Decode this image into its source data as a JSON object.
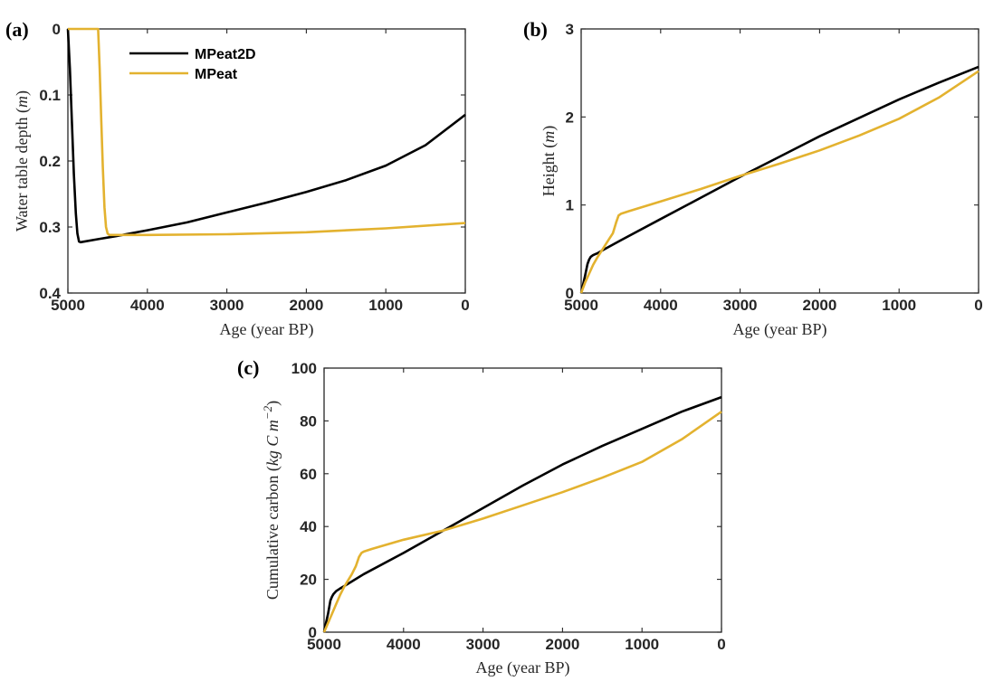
{
  "colors": {
    "MPeat2D": "#000000",
    "MPeat": "#E3B22F",
    "axis": "#262626"
  },
  "chart_data": [
    {
      "type": "line",
      "panel_label": "(a)",
      "title": "",
      "xlabel": "Age (year BP)",
      "ylabel_parts": [
        "Water table depth (",
        "m",
        ")"
      ],
      "xlim": [
        5000,
        0
      ],
      "ylim": [
        0.4,
        0
      ],
      "y_reversed": true,
      "xticks": [
        5000,
        4000,
        3000,
        2000,
        1000,
        0
      ],
      "yticks": [
        0,
        0.1,
        0.2,
        0.3,
        0.4
      ],
      "ytick_labels": [
        "0",
        "0.1",
        "0.2",
        "0.3",
        "0.4"
      ],
      "legend": {
        "placement": "top-left",
        "entries": [
          "MPeat2D",
          "MPeat"
        ]
      },
      "series": [
        {
          "name": "MPeat2D",
          "color": "#000000",
          "x": [
            5000,
            4975,
            4950,
            4925,
            4900,
            4880,
            4860,
            4840,
            4600,
            4400,
            4000,
            3500,
            3000,
            2500,
            2000,
            1500,
            1000,
            500,
            0
          ],
          "y": [
            0.0,
            0.06,
            0.14,
            0.22,
            0.28,
            0.31,
            0.322,
            0.323,
            0.318,
            0.314,
            0.305,
            0.293,
            0.278,
            0.263,
            0.247,
            0.229,
            0.207,
            0.176,
            0.13
          ]
        },
        {
          "name": "MPeat",
          "color": "#E3B22F",
          "x": [
            5000,
            4620,
            4600,
            4580,
            4560,
            4540,
            4520,
            4500,
            4480,
            4400,
            4000,
            3000,
            2000,
            1000,
            0
          ],
          "y": [
            0.0,
            0.0,
            0.06,
            0.14,
            0.21,
            0.27,
            0.3,
            0.31,
            0.312,
            0.312,
            0.312,
            0.311,
            0.308,
            0.302,
            0.294
          ]
        }
      ]
    },
    {
      "type": "line",
      "panel_label": "(b)",
      "title": "",
      "xlabel": "Age (year BP)",
      "ylabel_parts": [
        "Height (",
        "m",
        ")"
      ],
      "xlim": [
        5000,
        0
      ],
      "ylim": [
        0,
        3
      ],
      "y_reversed": false,
      "xticks": [
        5000,
        4000,
        3000,
        2000,
        1000,
        0
      ],
      "yticks": [
        0,
        1,
        2,
        3
      ],
      "ytick_labels": [
        "0",
        "1",
        "2",
        "3"
      ],
      "series": [
        {
          "name": "MPeat2D",
          "color": "#000000",
          "x": [
            5000,
            4980,
            4950,
            4920,
            4900,
            4880,
            4850,
            4800,
            4700,
            4500,
            4000,
            3500,
            3000,
            2500,
            2000,
            1500,
            1000,
            500,
            0
          ],
          "y": [
            0.0,
            0.08,
            0.2,
            0.33,
            0.38,
            0.41,
            0.43,
            0.45,
            0.5,
            0.6,
            0.84,
            1.08,
            1.32,
            1.55,
            1.78,
            1.99,
            2.2,
            2.39,
            2.57
          ]
        },
        {
          "name": "MPeat",
          "color": "#E3B22F",
          "x": [
            5000,
            4950,
            4900,
            4850,
            4800,
            4750,
            4700,
            4650,
            4600,
            4560,
            4530,
            4500,
            4400,
            4000,
            3500,
            3000,
            2500,
            2000,
            1500,
            1000,
            500,
            0
          ],
          "y": [
            0.0,
            0.12,
            0.22,
            0.32,
            0.4,
            0.47,
            0.54,
            0.61,
            0.68,
            0.8,
            0.88,
            0.9,
            0.93,
            1.04,
            1.18,
            1.33,
            1.47,
            1.62,
            1.79,
            1.98,
            2.22,
            2.52
          ]
        }
      ]
    },
    {
      "type": "line",
      "panel_label": "(c)",
      "title": "",
      "xlabel": "Age (year BP)",
      "ylabel_parts": [
        "Cumulative carbon (",
        "kg C m",
        "−2",
        ")"
      ],
      "xlim": [
        5000,
        0
      ],
      "ylim": [
        0,
        100
      ],
      "y_reversed": false,
      "xticks": [
        5000,
        4000,
        3000,
        2000,
        1000,
        0
      ],
      "yticks": [
        0,
        20,
        40,
        60,
        80,
        100
      ],
      "ytick_labels": [
        "0",
        "20",
        "40",
        "60",
        "80",
        "100"
      ],
      "series": [
        {
          "name": "MPeat2D",
          "color": "#000000",
          "x": [
            5000,
            4980,
            4950,
            4920,
            4900,
            4880,
            4850,
            4800,
            4700,
            4500,
            4000,
            3500,
            3000,
            2500,
            2000,
            1500,
            1000,
            500,
            0
          ],
          "y": [
            0.0,
            3,
            7,
            12,
            13.5,
            14.5,
            15.5,
            16.5,
            18.3,
            22,
            30,
            38.5,
            47,
            55.5,
            63.5,
            70.5,
            77,
            83.5,
            89
          ]
        },
        {
          "name": "MPeat",
          "color": "#E3B22F",
          "x": [
            5000,
            4950,
            4900,
            4850,
            4800,
            4750,
            4700,
            4650,
            4600,
            4560,
            4530,
            4500,
            4400,
            4000,
            3500,
            3000,
            2500,
            2000,
            1500,
            1000,
            500,
            0
          ],
          "y": [
            0.0,
            3.5,
            7,
            10.5,
            14,
            17,
            19.5,
            22,
            25,
            28.5,
            30,
            30.5,
            31.5,
            35,
            38.5,
            43,
            48,
            53,
            58.5,
            64.5,
            73,
            83.5
          ]
        }
      ]
    }
  ]
}
